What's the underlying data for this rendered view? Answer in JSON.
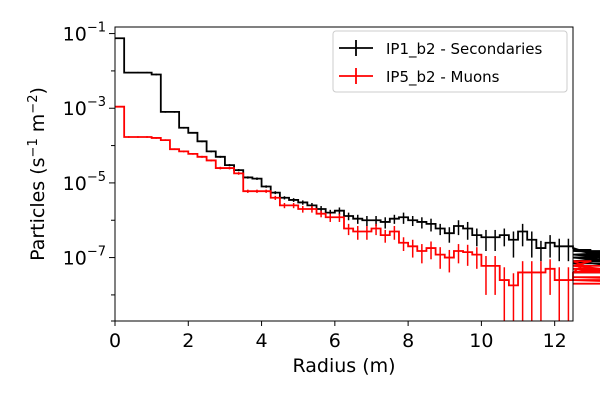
{
  "chart_data": {
    "type": "line",
    "style": "step-histogram with error bars",
    "xlabel": "Radius (m)",
    "ylabel": "Particles (s",
    "ylabel_parts": {
      "base": "Particles (s",
      "exp1": "−1",
      "mid": " m",
      "exp2": "−2",
      "end": ")"
    },
    "xlim": [
      0,
      12.5
    ],
    "ylim": [
      2e-09,
      0.15
    ],
    "yscale": "log",
    "x_ticks": [
      0,
      2,
      4,
      6,
      8,
      10,
      12
    ],
    "x_tick_labels": [
      "0",
      "2",
      "4",
      "6",
      "8",
      "10",
      "12"
    ],
    "y_ticks": [
      1e-07,
      1e-05,
      0.001,
      0.1
    ],
    "y_tick_labels": [
      {
        "base": "10",
        "exp": "−7"
      },
      {
        "base": "10",
        "exp": "−5"
      },
      {
        "base": "10",
        "exp": "−3"
      },
      {
        "base": "10",
        "exp": "−1"
      }
    ],
    "grid": false,
    "legend_position": "top-right",
    "bin_width": 0.25,
    "series": [
      {
        "name": "IP1_b2 - Secondaries",
        "color": "#000000",
        "values": [
          0.075,
          0.009,
          0.009,
          0.009,
          0.008,
          0.0008,
          0.0008,
          0.0003,
          0.00022,
          0.00013,
          7e-05,
          5e-05,
          3e-05,
          2.2e-05,
          1.4e-05,
          1.3e-05,
          8e-06,
          5.5e-06,
          4e-06,
          3.5e-06,
          3e-06,
          2.5e-06,
          2e-06,
          1.6e-06,
          1.8e-06,
          1.3e-06,
          1.1e-06,
          1e-06,
          1e-06,
          9e-07,
          1.1e-06,
          1.2e-06,
          1e-06,
          9e-07,
          8e-07,
          6e-07,
          4.5e-07,
          7e-07,
          6e-07,
          4e-07,
          3.5e-07,
          3.5e-07,
          4e-07,
          3e-07,
          5e-07,
          3e-07,
          1.8e-07,
          2.5e-07,
          2e-07,
          2e-07,
          1.8e-07,
          1.5e-07,
          1.6e-07,
          1.2e-07,
          1e-07,
          8e-08,
          1e-07,
          1.2e-07,
          1.5e-07,
          1.2e-07,
          8e-08,
          4e-08,
          7e-08
        ],
        "errors_up": [
          0.003,
          0.0004,
          0.0004,
          0.0004,
          0.0004,
          4e-05,
          4e-05,
          1.5e-05,
          1e-05,
          7e-06,
          4e-06,
          3e-06,
          2e-06,
          1.5e-06,
          1e-06,
          1e-06,
          6e-07,
          5e-07,
          4e-07,
          4e-07,
          4e-07,
          4e-07,
          4e-07,
          3e-07,
          4e-07,
          3e-07,
          3e-07,
          3e-07,
          3e-07,
          3e-07,
          3e-07,
          4e-07,
          3e-07,
          3e-07,
          3e-07,
          2e-07,
          2e-07,
          3e-07,
          3e-07,
          2e-07,
          2e-07,
          2e-07,
          2e-07,
          2e-07,
          3e-07,
          2e-07,
          1e-07,
          1.5e-07,
          1.2e-07,
          1.2e-07,
          1.2e-07,
          1e-07,
          1e-07,
          9e-08,
          8e-08,
          6e-08,
          8e-08,
          9e-08,
          1e-07,
          9e-08,
          6e-08,
          4e-08,
          6e-08
        ]
      },
      {
        "name": "IP5_b2 - Muons",
        "color": "#ff0000",
        "values": [
          0.0011,
          0.00017,
          0.00017,
          0.00017,
          0.00016,
          0.00014,
          8e-05,
          7e-05,
          6e-05,
          5e-05,
          4e-05,
          2.5e-05,
          2.5e-05,
          1.8e-05,
          6e-06,
          6e-06,
          6e-06,
          4e-06,
          2.5e-06,
          2.5e-06,
          2e-06,
          2e-06,
          1.5e-06,
          1.2e-06,
          1.2e-06,
          6e-07,
          5e-07,
          5e-07,
          6e-07,
          4e-07,
          5e-07,
          2.5e-07,
          2e-07,
          1.5e-07,
          1.8e-07,
          1.2e-07,
          1e-07,
          1.5e-07,
          1.4e-07,
          1.2e-07,
          6e-08,
          6e-08,
          2.5e-08,
          1.8e-08,
          4e-08,
          4e-08,
          4e-08,
          5e-08,
          2.5e-08,
          2.5e-08,
          4e-08,
          6e-08,
          8e-08,
          4e-08,
          5e-08,
          4e-08,
          6e-08,
          4e-08,
          4e-08,
          5e-08,
          3e-08,
          2.5e-08,
          2e-08
        ],
        "errors_up": [
          5e-05,
          9e-06,
          9e-06,
          9e-06,
          8e-06,
          7e-06,
          4e-06,
          4e-06,
          3e-06,
          3e-06,
          2.5e-06,
          2e-06,
          2e-06,
          1.5e-06,
          6e-07,
          6e-07,
          6e-07,
          5e-07,
          4e-07,
          4e-07,
          4e-07,
          4e-07,
          3e-07,
          3e-07,
          3e-07,
          2e-07,
          2e-07,
          2e-07,
          2e-07,
          1.5e-07,
          2e-07,
          1e-07,
          1e-07,
          8e-08,
          9e-08,
          7e-08,
          6e-08,
          8e-08,
          8e-08,
          7e-08,
          5e-08,
          5e-08,
          3e-08,
          2e-08,
          4e-08,
          4e-08,
          4e-08,
          4e-08,
          3e-08,
          3e-08,
          4e-08,
          5e-08,
          6e-08,
          4e-08,
          5e-08,
          4e-08,
          5e-08,
          4e-08,
          4e-08,
          4e-08,
          3e-08,
          2e-08,
          1.5e-08
        ]
      }
    ]
  }
}
